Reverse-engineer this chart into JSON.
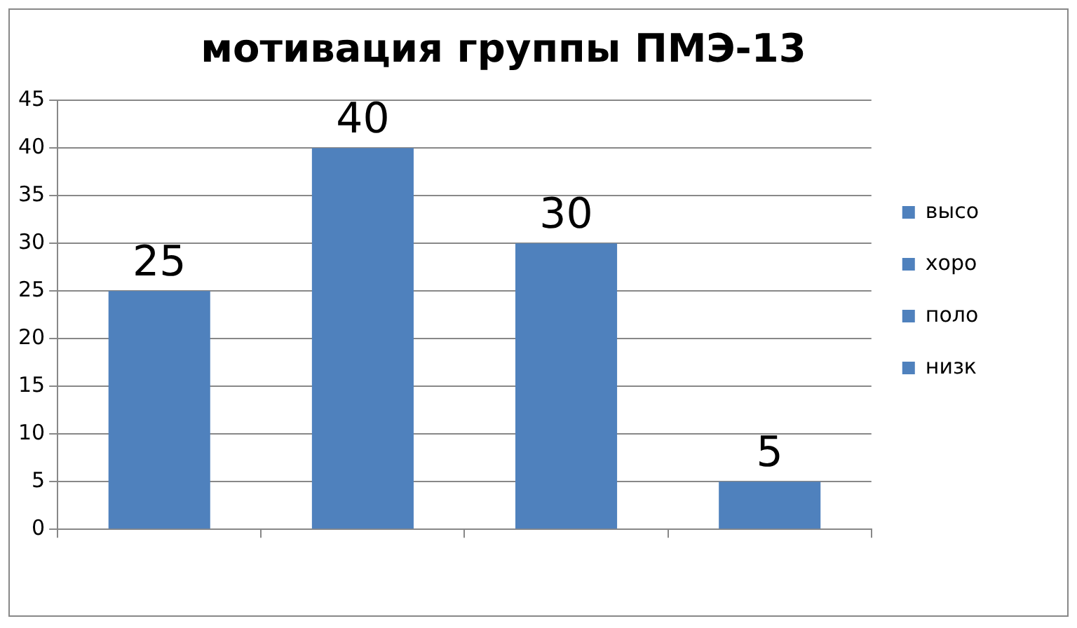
{
  "chart_data": {
    "type": "bar",
    "title": "мотивация группы ПМЭ-13",
    "categories": [
      null,
      null,
      null,
      null
    ],
    "series": [
      {
        "name": "высо",
        "color": "#4f81bd",
        "values": [
          25,
          null,
          null,
          null
        ]
      },
      {
        "name": "хоро",
        "color": "#4f81bd",
        "values": [
          null,
          40,
          null,
          null
        ]
      },
      {
        "name": "поло",
        "color": "#4f81bd",
        "values": [
          null,
          null,
          30,
          null
        ]
      },
      {
        "name": "низк",
        "color": "#4f81bd",
        "values": [
          null,
          null,
          null,
          5
        ]
      }
    ],
    "ylim": [
      0,
      45
    ],
    "yticks": [
      0,
      5,
      10,
      15,
      20,
      25,
      30,
      35,
      40,
      45
    ],
    "grid": "y",
    "legend": "right",
    "data_labels": true
  }
}
